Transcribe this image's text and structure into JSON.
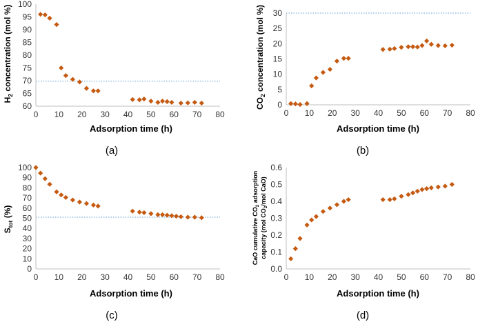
{
  "marker_color": "#C55A11",
  "ref_line_color": "#5B9BD5",
  "chart_data": [
    {
      "type": "scatter",
      "panel_label": "(a)",
      "ylabel_main": "H",
      "ylabel_sub": "2",
      "ylabel_rest": " concentration (mol %)",
      "xlabel": "Adsorption time (h)",
      "xlim": [
        0,
        80
      ],
      "xticks": [
        0,
        10,
        20,
        30,
        40,
        50,
        60,
        70,
        80
      ],
      "ylim": [
        60,
        100
      ],
      "yticks": [
        60,
        65,
        70,
        75,
        80,
        85,
        90,
        95,
        100
      ],
      "reference_line": 69.8,
      "x": [
        2,
        4,
        6,
        9,
        11,
        13,
        16,
        19,
        22,
        25,
        27,
        42,
        45,
        47,
        50,
        53,
        55,
        57,
        59,
        63,
        66,
        69,
        72
      ],
      "y": [
        96,
        95.8,
        94.5,
        92,
        75,
        72,
        70.5,
        69.5,
        67,
        66,
        66,
        62.6,
        62.5,
        62.8,
        62,
        61.5,
        62,
        61.8,
        61.5,
        61.2,
        61.3,
        61.5,
        61.2
      ]
    },
    {
      "type": "scatter",
      "panel_label": "(b)",
      "ylabel_main": "CO",
      "ylabel_sub": "2",
      "ylabel_rest": " concentration (mol %)",
      "xlabel": "Adsorption time (h)",
      "xlim": [
        0,
        80
      ],
      "xticks": [
        0,
        10,
        20,
        30,
        40,
        50,
        60,
        70,
        80
      ],
      "ylim": [
        0,
        30
      ],
      "yticks": [
        0,
        5,
        10,
        15,
        20,
        25,
        30
      ],
      "reference_line": 30,
      "x": [
        2,
        4,
        6,
        9,
        11,
        13,
        16,
        19,
        22,
        25,
        27,
        42,
        45,
        47,
        50,
        53,
        55,
        57,
        59,
        61,
        63,
        66,
        69,
        72
      ],
      "y": [
        0.4,
        0.3,
        0.1,
        0.4,
        6.2,
        8.8,
        10.6,
        11.6,
        14.3,
        15.2,
        15.2,
        18.1,
        18.2,
        18.4,
        18.8,
        19,
        19,
        18.9,
        19.4,
        20.9,
        19.8,
        19.4,
        19.3,
        19.5
      ]
    },
    {
      "type": "scatter",
      "panel_label": "(c)",
      "ylabel_main": "S",
      "ylabel_sub": "tot",
      "ylabel_rest": " (%)",
      "xlabel": "Adsorption time (h)",
      "xlim": [
        0,
        80
      ],
      "xticks": [
        0,
        10,
        20,
        30,
        40,
        50,
        60,
        70,
        80
      ],
      "ylim": [
        0,
        100
      ],
      "yticks": [
        0,
        10,
        20,
        30,
        40,
        50,
        60,
        70,
        80,
        90,
        100
      ],
      "reference_line": 51,
      "x": [
        0,
        2,
        4,
        6,
        9,
        11,
        13,
        16,
        19,
        22,
        25,
        27,
        42,
        45,
        47,
        50,
        53,
        55,
        57,
        59,
        61,
        63,
        66,
        69,
        72
      ],
      "y": [
        100,
        94.5,
        89,
        83.5,
        76,
        73,
        70.5,
        68,
        66,
        64.5,
        63,
        62,
        57,
        56,
        55.5,
        54.5,
        53.5,
        53.5,
        53,
        52.5,
        52,
        51.5,
        51,
        51,
        50.5
      ]
    },
    {
      "type": "scatter",
      "panel_label": "(d)",
      "ylabel_line1_a": "CaO cumulative CO",
      "ylabel_line1_sub": "2",
      "ylabel_line1_b": " adsorption",
      "ylabel_line2_a": "capacity (mol CO",
      "ylabel_line2_sub": "2",
      "ylabel_line2_b": "/mol CaO)",
      "xlabel": "Adsorption time (h)",
      "xlim": [
        0,
        80
      ],
      "xticks": [
        0,
        10,
        20,
        30,
        40,
        50,
        60,
        70,
        80
      ],
      "ylim": [
        0,
        0.6
      ],
      "yticks": [
        0,
        0.1,
        0.2,
        0.3,
        0.4,
        0.5,
        0.6
      ],
      "ytick_labels": [
        "0.0",
        "0.1",
        "0.2",
        "0.3",
        "0.4",
        "0.5",
        "0.6"
      ],
      "x": [
        2,
        4,
        6,
        9,
        11,
        13,
        16,
        19,
        22,
        25,
        27,
        42,
        45,
        47,
        50,
        53,
        55,
        57,
        59,
        61,
        63,
        66,
        69,
        72
      ],
      "y": [
        0.06,
        0.12,
        0.18,
        0.26,
        0.29,
        0.31,
        0.34,
        0.36,
        0.38,
        0.4,
        0.41,
        0.41,
        0.41,
        0.415,
        0.43,
        0.44,
        0.45,
        0.46,
        0.47,
        0.475,
        0.48,
        0.485,
        0.49,
        0.5
      ]
    }
  ]
}
